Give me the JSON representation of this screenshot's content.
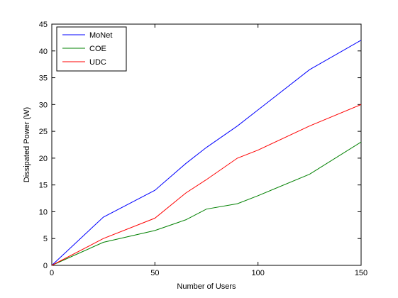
{
  "chart_data": {
    "type": "line",
    "title": "",
    "xlabel": "Number of Users",
    "ylabel": "Dissipated Power (W)",
    "xlim": [
      0,
      150
    ],
    "ylim": [
      0,
      45
    ],
    "xticks": [
      0,
      50,
      100,
      150
    ],
    "yticks": [
      0,
      5,
      10,
      15,
      20,
      25,
      30,
      35,
      40,
      45
    ],
    "grid": false,
    "legend_position": "top-left",
    "series": [
      {
        "name": "MoNet",
        "color": "#0000ff",
        "x": [
          0,
          25,
          50,
          65,
          75,
          90,
          100,
          125,
          150
        ],
        "y": [
          0,
          9.0,
          14.0,
          19.0,
          22.0,
          26.0,
          29.0,
          36.5,
          42.0
        ]
      },
      {
        "name": "COE",
        "color": "#008000",
        "x": [
          0,
          25,
          50,
          65,
          75,
          90,
          100,
          125,
          150
        ],
        "y": [
          0,
          4.3,
          6.5,
          8.5,
          10.5,
          11.5,
          13.0,
          17.0,
          23.0
        ]
      },
      {
        "name": "UDC",
        "color": "#ff0000",
        "x": [
          0,
          25,
          50,
          65,
          75,
          90,
          100,
          125,
          150
        ],
        "y": [
          0,
          5.0,
          8.8,
          13.5,
          16.0,
          20.0,
          21.5,
          26.0,
          30.0
        ]
      }
    ]
  }
}
